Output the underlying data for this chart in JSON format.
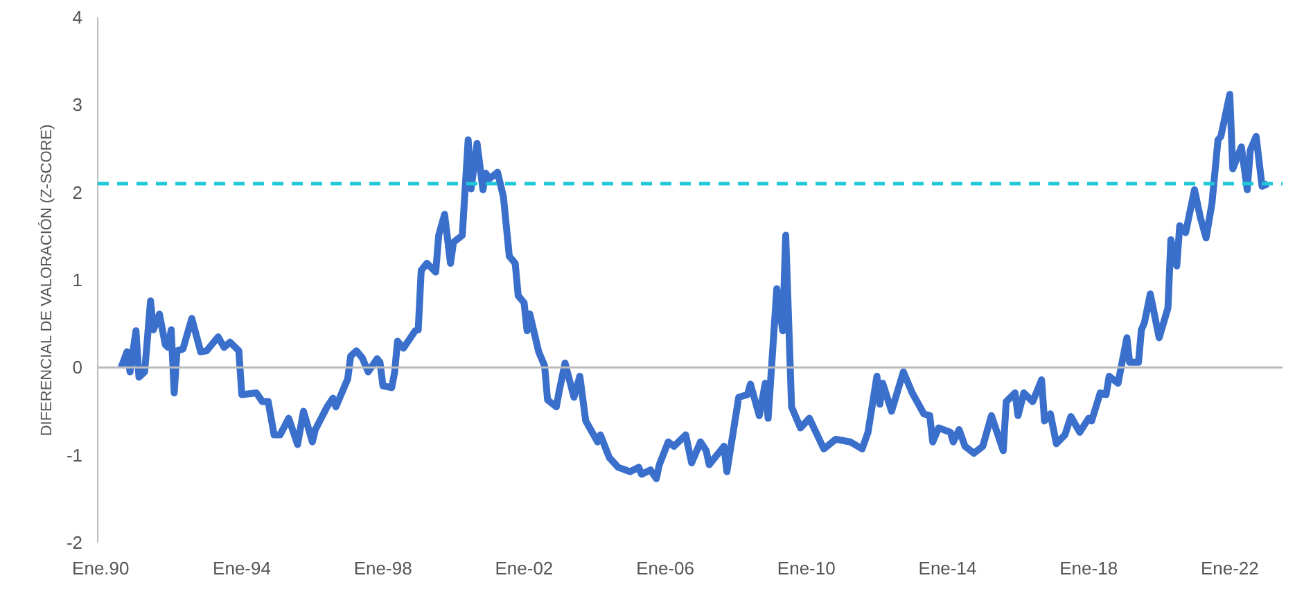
{
  "chart_data": {
    "type": "line",
    "ylabel": "DIFERENCIAL DE VALORACIÓN (Z-SCORE)",
    "xlim": [
      "1989-12",
      "2023-07"
    ],
    "ylim": [
      -2,
      4
    ],
    "yticks": [
      -2,
      -1,
      0,
      1,
      2,
      3,
      4
    ],
    "xticks": [
      {
        "value": "1990-01",
        "label": "Ene.90"
      },
      {
        "value": "1994-01",
        "label": "Ene-94"
      },
      {
        "value": "1998-01",
        "label": "Ene-98"
      },
      {
        "value": "2002-01",
        "label": "Ene-02"
      },
      {
        "value": "2006-01",
        "label": "Ene-06"
      },
      {
        "value": "2010-01",
        "label": "Ene-10"
      },
      {
        "value": "2014-01",
        "label": "Ene-14"
      },
      {
        "value": "2018-01",
        "label": "Ene-18"
      },
      {
        "value": "2022-01",
        "label": "Ene-22"
      }
    ],
    "grid": false,
    "marker": "none",
    "line_style": "solid",
    "ref_lines": [
      {
        "axis": "y",
        "value": 0,
        "color": "#bbbbbb",
        "line_style": "solid"
      },
      {
        "axis": "y",
        "value": 2.1,
        "color": "#1fc8d8",
        "line_style": "dashed"
      }
    ],
    "series": [
      {
        "color": "#3a6fcb",
        "x": [
          "1990-08",
          "1990-10",
          "1990-11",
          "1991-01",
          "1991-02",
          "1991-04",
          "1991-06",
          "1991-07",
          "1991-09",
          "1991-11",
          "1991-12",
          "1992-01",
          "1992-02",
          "1992-03",
          "1992-05",
          "1992-08",
          "1992-11",
          "1993-01",
          "1993-05",
          "1993-07",
          "1993-09",
          "1993-12",
          "1994-01",
          "1994-06",
          "1994-08",
          "1994-10",
          "1994-12",
          "1995-02",
          "1995-05",
          "1995-08",
          "1995-10",
          "1996-01",
          "1996-02",
          "1996-06",
          "1996-08",
          "1996-09",
          "1997-01",
          "1997-02",
          "1997-04",
          "1997-06",
          "1997-08",
          "1997-11",
          "1997-12",
          "1998-01",
          "1998-04",
          "1998-05",
          "1998-06",
          "1998-08",
          "1998-12",
          "1999-01",
          "1999-02",
          "1999-04",
          "1999-07",
          "1999-08",
          "1999-10",
          "1999-12",
          "2000-01",
          "2000-04",
          "2000-06",
          "2000-07",
          "2000-09",
          "2000-11",
          "2000-12",
          "2001-01",
          "2001-04",
          "2001-06",
          "2001-08",
          "2001-10",
          "2001-11",
          "2002-01",
          "2002-02",
          "2002-03",
          "2002-06",
          "2002-08",
          "2002-09",
          "2002-12",
          "2003-01",
          "2003-03",
          "2003-06",
          "2003-08",
          "2003-10",
          "2004-02",
          "2004-03",
          "2004-06",
          "2004-09",
          "2005-01",
          "2005-04",
          "2005-05",
          "2005-08",
          "2005-10",
          "2005-11",
          "2006-02",
          "2006-04",
          "2006-08",
          "2006-10",
          "2007-01",
          "2007-03",
          "2007-04",
          "2007-09",
          "2007-10",
          "2008-02",
          "2008-05",
          "2008-06",
          "2008-09",
          "2008-11",
          "2008-12",
          "2009-03",
          "2009-05",
          "2009-06",
          "2009-08",
          "2009-11",
          "2010-02",
          "2010-07",
          "2010-11",
          "2011-04",
          "2011-08",
          "2011-10",
          "2012-01",
          "2012-02",
          "2012-03",
          "2012-06",
          "2012-10",
          "2013-01",
          "2013-05",
          "2013-07",
          "2013-08",
          "2013-10",
          "2014-02",
          "2014-03",
          "2014-05",
          "2014-07",
          "2014-10",
          "2015-01",
          "2015-04",
          "2015-08",
          "2015-09",
          "2015-12",
          "2016-01",
          "2016-03",
          "2016-06",
          "2016-09",
          "2016-10",
          "2016-12",
          "2017-02",
          "2017-05",
          "2017-07",
          "2017-10",
          "2018-01",
          "2018-02",
          "2018-05",
          "2018-07",
          "2018-08",
          "2018-11",
          "2019-02",
          "2019-03",
          "2019-06",
          "2019-07",
          "2019-08",
          "2019-10",
          "2020-01",
          "2020-04",
          "2020-05",
          "2020-07",
          "2020-08",
          "2020-10",
          "2021-01",
          "2021-03",
          "2021-05",
          "2021-07",
          "2021-09",
          "2021-10",
          "2022-01",
          "2022-02",
          "2022-05",
          "2022-07",
          "2022-08",
          "2022-10",
          "2022-12",
          "2023-02"
        ],
        "values": [
          0.0,
          0.18,
          -0.05,
          0.42,
          -0.11,
          -0.05,
          0.76,
          0.43,
          0.61,
          0.26,
          0.23,
          0.43,
          -0.29,
          0.19,
          0.21,
          0.56,
          0.18,
          0.19,
          0.35,
          0.23,
          0.29,
          0.19,
          -0.31,
          -0.29,
          -0.39,
          -0.39,
          -0.77,
          -0.77,
          -0.58,
          -0.88,
          -0.5,
          -0.85,
          -0.71,
          -0.45,
          -0.35,
          -0.45,
          -0.13,
          0.13,
          0.19,
          0.11,
          -0.05,
          0.1,
          0.06,
          -0.21,
          -0.23,
          -0.06,
          0.3,
          0.22,
          0.42,
          0.43,
          1.11,
          1.19,
          1.09,
          1.51,
          1.75,
          1.19,
          1.43,
          1.51,
          2.6,
          2.04,
          2.56,
          2.03,
          2.22,
          2.15,
          2.23,
          1.95,
          1.27,
          1.19,
          0.82,
          0.74,
          0.42,
          0.61,
          0.18,
          0.02,
          -0.37,
          -0.45,
          -0.26,
          0.05,
          -0.34,
          -0.1,
          -0.61,
          -0.85,
          -0.77,
          -1.03,
          -1.14,
          -1.19,
          -1.14,
          -1.22,
          -1.17,
          -1.27,
          -1.11,
          -0.85,
          -0.9,
          -0.77,
          -1.09,
          -0.85,
          -0.95,
          -1.11,
          -0.9,
          -1.19,
          -0.34,
          -0.31,
          -0.19,
          -0.55,
          -0.18,
          -0.58,
          0.9,
          0.42,
          1.51,
          -0.45,
          -0.69,
          -0.58,
          -0.93,
          -0.82,
          -0.85,
          -0.93,
          -0.74,
          -0.1,
          -0.42,
          -0.18,
          -0.5,
          -0.05,
          -0.29,
          -0.53,
          -0.55,
          -0.85,
          -0.69,
          -0.74,
          -0.85,
          -0.71,
          -0.9,
          -0.98,
          -0.9,
          -0.55,
          -0.95,
          -0.39,
          -0.29,
          -0.55,
          -0.29,
          -0.39,
          -0.14,
          -0.61,
          -0.53,
          -0.87,
          -0.77,
          -0.56,
          -0.74,
          -0.58,
          -0.61,
          -0.29,
          -0.31,
          -0.1,
          -0.18,
          0.34,
          0.06,
          0.06,
          0.43,
          0.51,
          0.84,
          0.34,
          0.68,
          1.46,
          1.16,
          1.62,
          1.54,
          2.03,
          1.72,
          1.48,
          1.88,
          2.6,
          2.64,
          3.12,
          2.27,
          2.52,
          2.03,
          2.48,
          2.64,
          2.07,
          2.1
        ]
      }
    ]
  }
}
